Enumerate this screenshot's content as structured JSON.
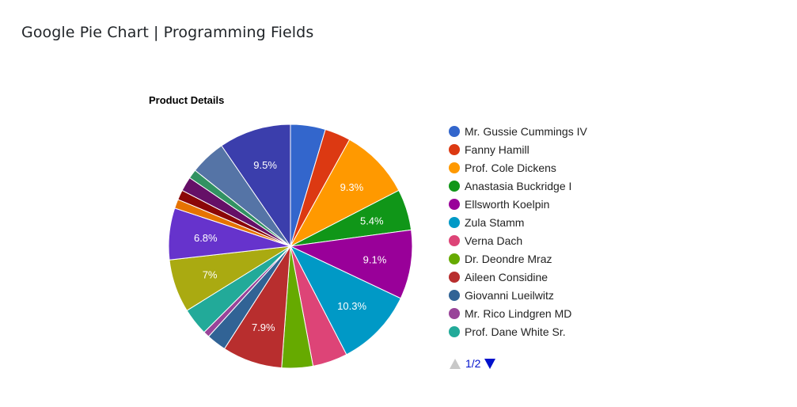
{
  "page": {
    "heading": "Google Pie Chart | Programming Fields"
  },
  "chart_data": {
    "type": "pie",
    "title": "Product Details",
    "slices": [
      {
        "name": "Mr. Gussie Cummings IV",
        "value": 4.6,
        "color": "#3366cc",
        "label": ""
      },
      {
        "name": "Fanny Hamill",
        "value": 3.4,
        "color": "#dc3912",
        "label": ""
      },
      {
        "name": "Prof. Cole Dickens",
        "value": 9.3,
        "color": "#ff9900",
        "label": "9.3%"
      },
      {
        "name": "Anastasia Buckridge I",
        "value": 5.4,
        "color": "#109618",
        "label": "5.4%"
      },
      {
        "name": "Ellsworth Koelpin",
        "value": 9.1,
        "color": "#990099",
        "label": "9.1%"
      },
      {
        "name": "Zula Stamm",
        "value": 10.3,
        "color": "#0099c6",
        "label": "10.3%"
      },
      {
        "name": "Verna Dach",
        "value": 4.6,
        "color": "#dd4477",
        "label": ""
      },
      {
        "name": "Dr. Deondre Mraz",
        "value": 4.1,
        "color": "#66aa00",
        "label": ""
      },
      {
        "name": "Aileen Considine",
        "value": 7.9,
        "color": "#b82e2e",
        "label": "7.9%"
      },
      {
        "name": "Giovanni Lueilwitz",
        "value": 2.6,
        "color": "#316395",
        "label": ""
      },
      {
        "name": "Mr. Rico Lindgren MD",
        "value": 0.8,
        "color": "#994499",
        "label": ""
      },
      {
        "name": "Prof. Dane White Sr.",
        "value": 3.6,
        "color": "#22aa99",
        "label": ""
      },
      {
        "value": 7.0,
        "color": "#aaaa11",
        "label": "7%"
      },
      {
        "value": 6.8,
        "color": "#6633cc",
        "label": "6.8%"
      },
      {
        "value": 1.2,
        "color": "#e67300",
        "label": ""
      },
      {
        "value": 1.3,
        "color": "#8b0707",
        "label": ""
      },
      {
        "value": 1.9,
        "color": "#651067",
        "label": ""
      },
      {
        "value": 1.2,
        "color": "#329262",
        "label": ""
      },
      {
        "value": 4.7,
        "color": "#5574a6",
        "label": ""
      },
      {
        "value": 9.5,
        "color": "#3b3eac",
        "label": "9.5%"
      }
    ],
    "legend_position": "right",
    "legend_page": "1/2",
    "legend_visible_count": 12
  }
}
